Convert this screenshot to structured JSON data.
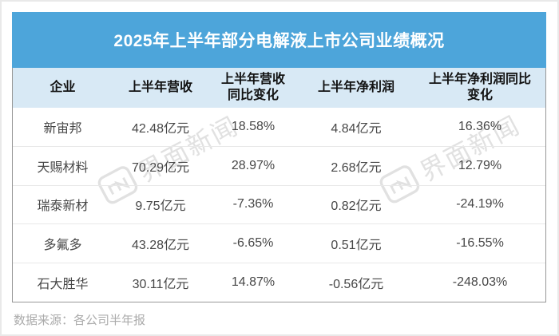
{
  "title": "2025年上半年部分电解液上市公司业绩概况",
  "table": {
    "columns": [
      "企业",
      "上半年营收",
      "上半年营收\n同比变化",
      "上半年净利润",
      "上半年净利润同比\n变化"
    ],
    "rows": [
      [
        "新宙邦",
        "42.48亿元",
        "18.58%",
        "4.84亿元",
        "16.36%"
      ],
      [
        "天赐材料",
        "70.29亿元",
        "28.97%",
        "2.68亿元",
        "12.79%"
      ],
      [
        "瑞泰新材",
        "9.75亿元",
        "-7.36%",
        "0.82亿元",
        "-24.19%"
      ],
      [
        "多氟多",
        "43.28亿元",
        "-6.65%",
        "0.51亿元",
        "-16.55%"
      ],
      [
        "石大胜华",
        "30.11亿元",
        "14.87%",
        "-0.56亿元",
        "-248.03%"
      ]
    ]
  },
  "footer": {
    "source": "数据来源：各公司半年报"
  },
  "watermark": {
    "text": "界面新闻"
  },
  "colors": {
    "title_bg": "#4DA5DA",
    "header_bg": "#D8E9F5",
    "table_border": "#979797",
    "row_divider": "#e8e8e8",
    "body_text": "#474747",
    "source_text": "#ababab",
    "watermark": "#e1e1e1"
  }
}
